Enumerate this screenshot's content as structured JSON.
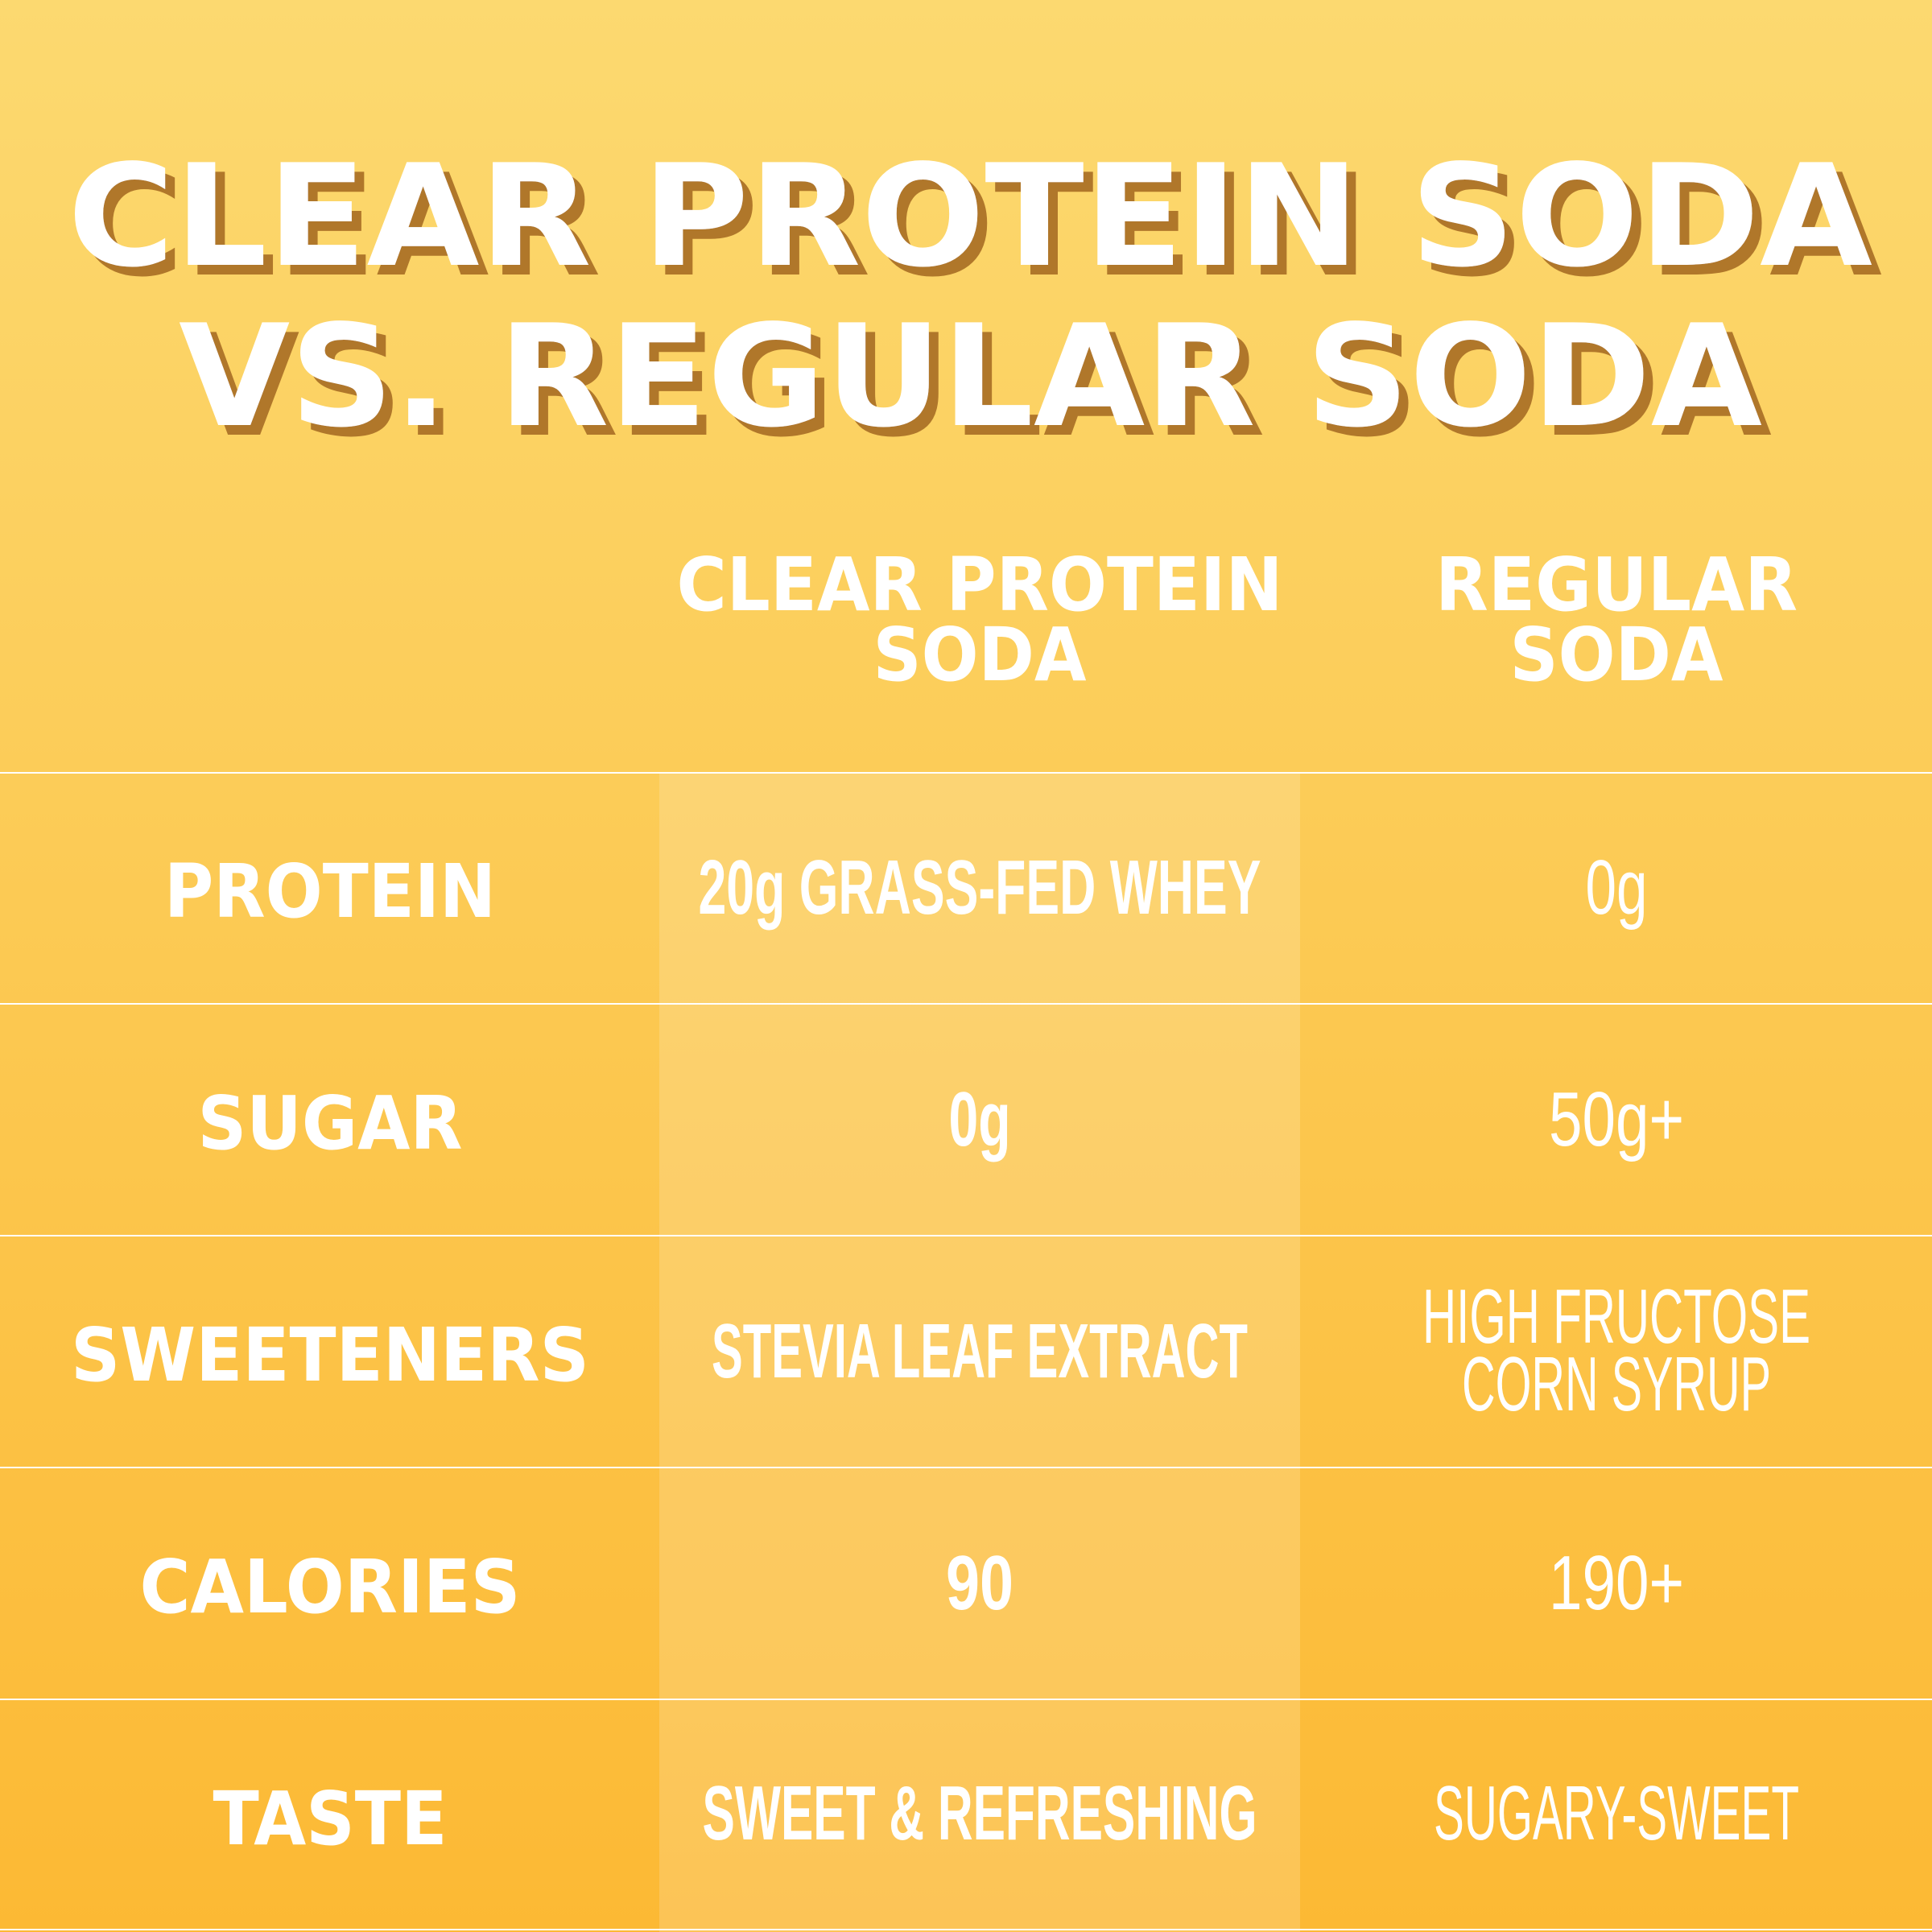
{
  "title": {
    "line1": "CLEAR PROTEIN SODA",
    "line2": "VS. REGULAR SODA"
  },
  "columns": [
    {
      "line1": "CLEAR PROTEIN",
      "line2": "SODA"
    },
    {
      "line1": "REGULAR",
      "line2": "SODA"
    }
  ],
  "rows": [
    {
      "label": "PROTEIN",
      "clear": "20g GRASS-FED WHEY",
      "regular": "0g"
    },
    {
      "label": "SUGAR",
      "clear": "0g",
      "regular": "50g+"
    },
    {
      "label": "SWEETENERS",
      "clear": "STEVIA LEAF EXTRACT",
      "regular_line1": "HIGH FRUCTOSE",
      "regular_line2": "CORN SYRUP"
    },
    {
      "label": "CALORIES",
      "clear": "90",
      "regular": "190+"
    },
    {
      "label": "TASTE",
      "clear": "SWEET & REFRESHING",
      "regular": "SUGARY-SWEET"
    }
  ],
  "colors": {
    "bg_top": "#fcd970",
    "bg_bottom": "#fcb934",
    "title_shadow": "#b0772b",
    "text": "#ffffff"
  }
}
